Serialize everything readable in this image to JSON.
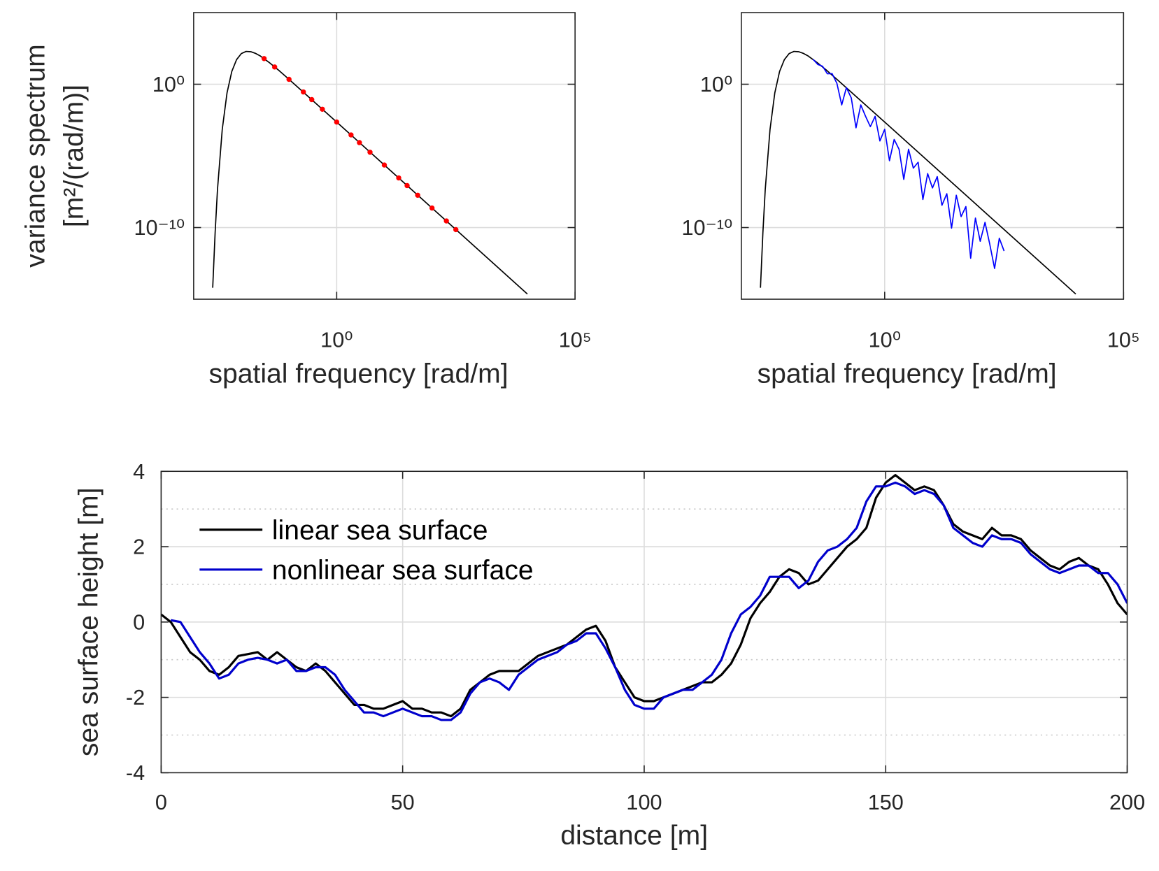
{
  "chart_data": [
    {
      "type": "line",
      "xlog": true,
      "ylog": true,
      "grid": true,
      "xlim": [
        0.001,
        100000
      ],
      "ylim": [
        1e-15,
        100000
      ],
      "xticks": [
        {
          "value": 1,
          "label": "10⁰"
        },
        {
          "value": 100000,
          "label": "10⁵"
        }
      ],
      "yticks": [
        {
          "value": 1e-10,
          "label": "10⁻¹⁰"
        },
        {
          "value": 1,
          "label": "10⁰"
        }
      ],
      "xlabel": "spatial frequency [rad/m]",
      "ylabel": [
        "variance spectrum",
        "[m²/(rad/m)]"
      ],
      "series": [
        {
          "color": "#000000",
          "x": [
            0.00251,
            0.00282,
            0.00316,
            0.00398,
            0.00501,
            0.00631,
            0.00794,
            0.01,
            0.0126,
            0.0158,
            0.02,
            0.0251,
            0.0398,
            0.0631,
            0.1,
            1,
            100,
            10000
          ],
          "values": [
            6.3e-15,
            4.3e-11,
            4.5e-08,
            0.00071,
            0.25,
            7.8,
            52,
            138,
            195,
            186,
            141,
            93,
            30,
            8.5,
            2.2,
            0.0023,
            2.3e-09,
            2.3e-15
          ]
        },
        {
          "color": "#ff0000",
          "marker": "dot",
          "x": [
            0.03,
            0.05,
            0.1,
            0.2,
            0.3,
            0.5,
            1,
            2,
            3,
            5,
            10,
            20,
            30,
            50,
            100,
            200,
            316
          ],
          "values": [
            62,
            16,
            2.2,
            0.29,
            0.085,
            0.018,
            0.0023,
            0.00029,
            8.5e-05,
            1.8e-05,
            2.3e-06,
            2.9e-07,
            8.5e-08,
            1.8e-08,
            2.3e-09,
            2.9e-10,
            7.2e-11
          ]
        }
      ]
    },
    {
      "type": "line",
      "xlog": true,
      "ylog": true,
      "grid": true,
      "xlim": [
        0.001,
        100000
      ],
      "ylim": [
        1e-15,
        100000
      ],
      "xticks": [
        {
          "value": 1,
          "label": "10⁰"
        },
        {
          "value": 100000,
          "label": "10⁵"
        }
      ],
      "yticks": [
        {
          "value": 1e-10,
          "label": "10⁻¹⁰"
        },
        {
          "value": 1,
          "label": "10⁰"
        }
      ],
      "xlabel": "spatial frequency [rad/m]",
      "series": [
        {
          "color": "#000000",
          "x": [
            0.00251,
            0.00282,
            0.00316,
            0.00398,
            0.00501,
            0.00631,
            0.00794,
            0.01,
            0.0126,
            0.0158,
            0.02,
            0.0251,
            0.0398,
            0.0631,
            0.1,
            1,
            100,
            10000
          ],
          "values": [
            6.3e-15,
            4.3e-11,
            4.5e-08,
            0.00071,
            0.25,
            7.8,
            52,
            138,
            195,
            186,
            141,
            93,
            30,
            8.5,
            2.2,
            0.0023,
            2.3e-09,
            2.3e-15
          ]
        },
        {
          "color": "#0000ff",
          "x": [
            0.0316,
            0.0398,
            0.0501,
            0.0631,
            0.0794,
            0.1,
            0.126,
            0.158,
            0.2,
            0.251,
            0.316,
            0.398,
            0.501,
            0.631,
            0.794,
            1,
            1.26,
            1.58,
            2,
            2.51,
            3.16,
            3.98,
            5.01,
            6.31,
            7.94,
            10,
            12.6,
            15.8,
            20,
            25.1,
            31.6,
            39.8,
            50.1,
            63.1,
            79.4,
            100,
            126,
            158,
            200,
            251,
            316
          ],
          "values": [
            55,
            24,
            18,
            5.4,
            5.5,
            1.15,
            0.036,
            0.58,
            0.11,
            0.00091,
            0.036,
            0.0058,
            0.0011,
            0.0058,
            0.00011,
            0.00072,
            4.6e-06,
            0.00014,
            2.9e-05,
            2.3e-07,
            2.9e-05,
            1.4e-06,
            3.6e-06,
            9.1e-09,
            5.8e-07,
            5.8e-08,
            3.6e-07,
            3.6e-09,
            2.3e-08,
            9.1e-11,
            1.8e-08,
            5.8e-10,
            2.9e-09,
            7.2e-13,
            4.6e-10,
            1.1e-11,
            2.3e-10,
            7.2e-12,
            1.4e-13,
            1.8e-11,
            2.3e-12
          ]
        }
      ]
    },
    {
      "type": "line",
      "grid": true,
      "legend": "upper left",
      "xlim": [
        0,
        200
      ],
      "ylim": [
        -4,
        4
      ],
      "xticks": [
        0,
        50,
        100,
        150,
        200
      ],
      "yticks": [
        -4,
        -2,
        0,
        2,
        4
      ],
      "yminorticks": [
        -3,
        -1,
        1,
        3
      ],
      "xlabel": "distance [m]",
      "ylabel": "sea surface height [m]",
      "x": [
        0,
        2,
        4,
        6,
        8,
        10,
        12,
        14,
        16,
        18,
        20,
        22,
        24,
        26,
        28,
        30,
        32,
        34,
        36,
        38,
        40,
        42,
        44,
        46,
        48,
        50,
        52,
        54,
        56,
        58,
        60,
        62,
        64,
        66,
        68,
        70,
        72,
        74,
        76,
        78,
        80,
        82,
        84,
        86,
        88,
        90,
        92,
        94,
        96,
        98,
        100,
        102,
        104,
        106,
        108,
        110,
        112,
        114,
        116,
        118,
        120,
        122,
        124,
        126,
        128,
        130,
        132,
        134,
        136,
        138,
        140,
        142,
        144,
        146,
        148,
        150,
        152,
        154,
        156,
        158,
        160,
        162,
        164,
        166,
        168,
        170,
        172,
        174,
        176,
        178,
        180,
        182,
        184,
        186,
        188,
        190,
        192,
        194,
        196,
        198,
        200
      ],
      "series": [
        {
          "name": "linear sea surface",
          "color": "#000000",
          "values": [
            0.2,
            0.0,
            -0.4,
            -0.8,
            -1.0,
            -1.3,
            -1.4,
            -1.2,
            -0.9,
            -0.85,
            -0.8,
            -1.0,
            -0.8,
            -1.0,
            -1.2,
            -1.3,
            -1.1,
            -1.3,
            -1.6,
            -1.9,
            -2.2,
            -2.2,
            -2.3,
            -2.3,
            -2.2,
            -2.1,
            -2.3,
            -2.3,
            -2.4,
            -2.4,
            -2.5,
            -2.3,
            -1.8,
            -1.6,
            -1.4,
            -1.3,
            -1.3,
            -1.3,
            -1.1,
            -0.9,
            -0.8,
            -0.7,
            -0.6,
            -0.4,
            -0.2,
            -0.1,
            -0.5,
            -1.2,
            -1.6,
            -2.0,
            -2.1,
            -2.1,
            -2.0,
            -1.9,
            -1.8,
            -1.7,
            -1.6,
            -1.6,
            -1.4,
            -1.1,
            -0.6,
            0.1,
            0.5,
            0.8,
            1.2,
            1.4,
            1.3,
            1.0,
            1.1,
            1.4,
            1.7,
            2.0,
            2.2,
            2.5,
            3.3,
            3.7,
            3.9,
            3.7,
            3.5,
            3.6,
            3.5,
            3.1,
            2.6,
            2.4,
            2.3,
            2.2,
            2.5,
            2.3,
            2.3,
            2.2,
            1.9,
            1.7,
            1.5,
            1.4,
            1.6,
            1.7,
            1.5,
            1.4,
            1.0,
            0.5,
            0.2
          ]
        },
        {
          "name": "nonlinear sea surface",
          "color": "#0000cc",
          "values": [
            null,
            0.05,
            0.0,
            -0.4,
            -0.8,
            -1.1,
            -1.5,
            -1.4,
            -1.1,
            -1.0,
            -0.95,
            -1.0,
            -1.1,
            -1.0,
            -1.3,
            -1.3,
            -1.2,
            -1.2,
            -1.4,
            -1.8,
            -2.1,
            -2.4,
            -2.4,
            -2.5,
            -2.4,
            -2.3,
            -2.4,
            -2.5,
            -2.5,
            -2.6,
            -2.6,
            -2.4,
            -1.9,
            -1.6,
            -1.5,
            -1.6,
            -1.8,
            -1.4,
            -1.2,
            -1.0,
            -0.9,
            -0.8,
            -0.6,
            -0.5,
            -0.3,
            -0.3,
            -0.7,
            -1.2,
            -1.8,
            -2.2,
            -2.3,
            -2.3,
            -2.0,
            -1.9,
            -1.8,
            -1.8,
            -1.6,
            -1.4,
            -1.0,
            -0.3,
            0.2,
            0.4,
            0.7,
            1.2,
            1.2,
            1.2,
            0.9,
            1.1,
            1.6,
            1.9,
            2.0,
            2.2,
            2.5,
            3.2,
            3.6,
            3.6,
            3.7,
            3.6,
            3.4,
            3.5,
            3.4,
            3.1,
            2.5,
            2.3,
            2.1,
            2.0,
            2.3,
            2.2,
            2.2,
            2.1,
            1.8,
            1.6,
            1.4,
            1.3,
            1.4,
            1.5,
            1.5,
            1.3,
            1.3,
            1.0,
            0.5
          ]
        }
      ]
    }
  ]
}
